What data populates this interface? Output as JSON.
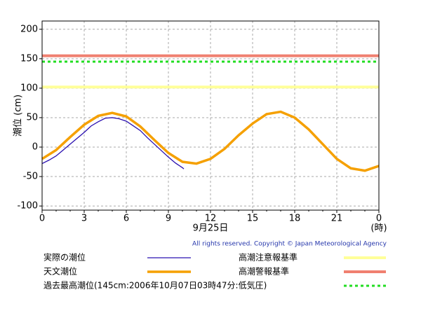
{
  "chart_data": {
    "type": "line",
    "y_label": "潮位 (cm)",
    "x_label": "9月25日",
    "x_unit": "(時)",
    "copyright": "All rights reserved. Copyright © Japan Meteorological Agency",
    "xlim": [
      0,
      24
    ],
    "xticks": [
      0,
      3,
      6,
      9,
      12,
      15,
      18,
      21,
      {
        "value": 24,
        "label": "0"
      }
    ],
    "ylim": [
      -107,
      214
    ],
    "yticks": [
      -100,
      -50,
      0,
      50,
      100,
      150,
      200
    ],
    "grid": true,
    "series": [
      {
        "name": "実際の潮位",
        "color": "#2a10b0",
        "x": [
          0,
          0.5,
          1,
          1.5,
          2,
          2.5,
          3,
          3.5,
          4,
          4.5,
          5,
          5.5,
          6,
          6.5,
          7,
          7.5,
          8,
          8.5,
          9,
          9.5,
          10,
          10.1
        ],
        "values": [
          -28,
          -22,
          -15,
          -5,
          5,
          15,
          25,
          36,
          43,
          49,
          50,
          48,
          44,
          36,
          28,
          16,
          5,
          -6,
          -17,
          -27,
          -35,
          -37
        ]
      },
      {
        "name": "天文潮位",
        "color": "#f5a000",
        "x": [
          0,
          1,
          2,
          3,
          4,
          5,
          6,
          7,
          8,
          9,
          10,
          11,
          12,
          13,
          14,
          15,
          16,
          17,
          18,
          19,
          20,
          21,
          22,
          23,
          24
        ],
        "values": [
          -20,
          -5,
          17,
          38,
          53,
          58,
          52,
          35,
          12,
          -10,
          -25,
          -28,
          -20,
          -3,
          20,
          40,
          56,
          60,
          50,
          30,
          5,
          -20,
          -36,
          -40,
          -32
        ]
      }
    ],
    "reference_lines": [
      {
        "name": "高潮注意報基準",
        "color": "#ffff99",
        "value": 102
      },
      {
        "name": "高潮警報基準",
        "color": "#f08070",
        "value": 155
      },
      {
        "name": "過去最高潮位(145cm:2006年10月07日03時47分:低気圧)",
        "color": "#22dd22",
        "value": 145,
        "dashed": true
      }
    ]
  }
}
